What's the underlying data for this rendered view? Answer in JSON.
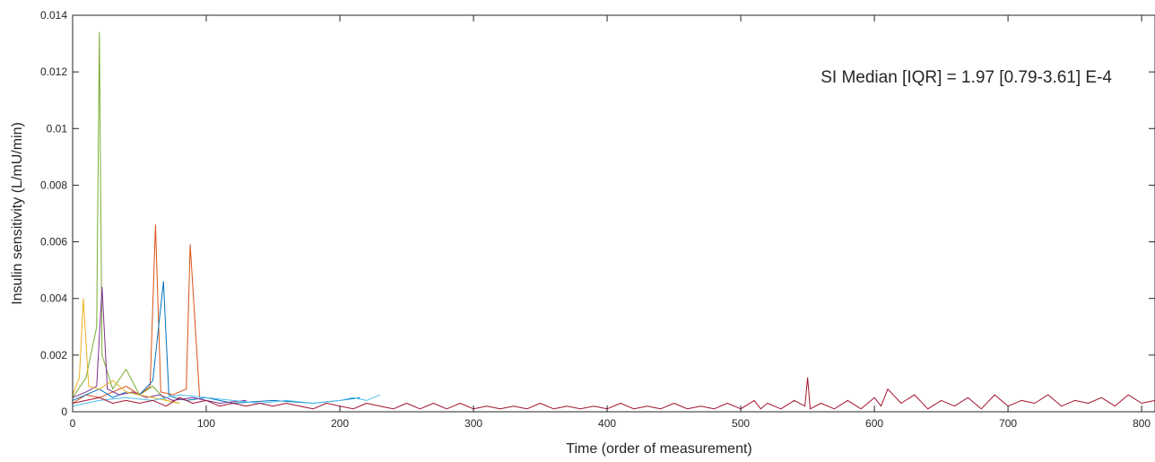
{
  "chart_data": {
    "type": "line",
    "title": "",
    "xlabel": "Time (order of  measurement)",
    "ylabel": "Insulin sensitivity (L/mU/min)",
    "xlim": [
      0,
      810
    ],
    "ylim": [
      0,
      0.014
    ],
    "x_ticks": [
      0,
      100,
      200,
      300,
      400,
      500,
      600,
      700,
      800
    ],
    "x_tick_labels": [
      "0",
      "100",
      "200",
      "300",
      "400",
      "500",
      "600",
      "700",
      "800"
    ],
    "y_ticks": [
      0,
      0.002,
      0.004,
      0.006,
      0.008,
      0.01,
      0.012,
      0.014
    ],
    "y_tick_labels": [
      "0",
      "0.002",
      "0.004",
      "0.006",
      "0.008",
      "0.01",
      "0.012",
      "0.014"
    ],
    "grid": false,
    "legend": "none",
    "annotation": "SI Median [IQR] = 1.97 [0.79-3.61] E-4",
    "series": [
      {
        "color": "#77ac30",
        "x": [
          0,
          10,
          18,
          20,
          22,
          30,
          40,
          50,
          60,
          70,
          80
        ],
        "y": [
          0.0005,
          0.0012,
          0.003,
          0.0134,
          0.002,
          0.0008,
          0.0015,
          0.0006,
          0.0009,
          0.0004,
          0.0003
        ]
      },
      {
        "color": "#d95319",
        "x": [
          0,
          10,
          20,
          30,
          40,
          50,
          58,
          62,
          66,
          75,
          85,
          88,
          95
        ],
        "y": [
          0.0003,
          0.0006,
          0.0005,
          0.0007,
          0.0009,
          0.0006,
          0.0009,
          0.0066,
          0.0007,
          0.0006,
          0.0008,
          0.0059,
          0.0005
        ]
      },
      {
        "color": "#0072bd",
        "x": [
          0,
          10,
          20,
          30,
          40,
          50,
          60,
          68,
          72,
          76,
          85,
          100,
          120,
          150,
          180,
          200,
          215
        ],
        "y": [
          0.0004,
          0.0006,
          0.0008,
          0.0005,
          0.0007,
          0.0006,
          0.0011,
          0.0046,
          0.0006,
          0.0005,
          0.0004,
          0.0005,
          0.0003,
          0.0004,
          0.0003,
          0.0004,
          0.0005
        ]
      },
      {
        "color": "#7e2f8e",
        "x": [
          0,
          10,
          18,
          22,
          26,
          35,
          45,
          55,
          65,
          75,
          90,
          110,
          130
        ],
        "y": [
          0.0005,
          0.0007,
          0.0009,
          0.0044,
          0.0008,
          0.0006,
          0.0007,
          0.0005,
          0.0006,
          0.0004,
          0.0005,
          0.0003,
          0.0004
        ]
      },
      {
        "color": "#edb120",
        "x": [
          0,
          5,
          8,
          12,
          20,
          30,
          40,
          50,
          60,
          70,
          80
        ],
        "y": [
          0.0006,
          0.0012,
          0.004,
          0.0009,
          0.0008,
          0.0011,
          0.0007,
          0.0006,
          0.0005,
          0.0004,
          0.0003
        ]
      },
      {
        "color": "#4dbeee",
        "x": [
          0,
          20,
          40,
          60,
          80,
          100,
          120,
          140,
          160,
          180,
          200,
          210,
          220,
          230
        ],
        "y": [
          0.0002,
          0.0004,
          0.0005,
          0.0004,
          0.0006,
          0.0005,
          0.0004,
          0.0003,
          0.0004,
          0.0003,
          0.0004,
          0.0005,
          0.0004,
          0.0006
        ]
      },
      {
        "color": "#a2142f",
        "x": [
          0,
          10,
          20,
          30,
          40,
          50,
          60,
          70,
          80,
          90,
          100,
          110,
          120,
          130,
          140,
          150,
          160,
          170,
          180,
          190,
          200,
          210,
          220,
          230,
          240,
          250,
          260,
          270,
          280,
          290,
          300,
          310,
          320,
          330,
          340,
          350,
          360,
          370,
          380,
          390,
          400,
          410,
          420,
          430,
          440,
          450,
          460,
          470,
          480,
          490,
          500,
          510,
          515,
          520,
          530,
          540,
          548,
          550,
          552,
          560,
          570,
          580,
          590,
          600,
          605,
          610,
          620,
          630,
          640,
          650,
          660,
          670,
          680,
          690,
          700,
          710,
          720,
          730,
          740,
          750,
          760,
          770,
          780,
          790,
          800,
          810
        ],
        "y": [
          0.0003,
          0.0004,
          0.0005,
          0.0003,
          0.0004,
          0.0003,
          0.0004,
          0.0002,
          0.0005,
          0.0003,
          0.0004,
          0.0002,
          0.0003,
          0.0002,
          0.0003,
          0.0002,
          0.0003,
          0.0002,
          0.0001,
          0.0003,
          0.0002,
          0.0001,
          0.0003,
          0.0002,
          0.0001,
          0.0003,
          0.0001,
          0.0003,
          0.0001,
          0.0003,
          0.0001,
          0.0002,
          0.0001,
          0.0002,
          0.0001,
          0.0003,
          0.0001,
          0.0002,
          0.0001,
          0.0002,
          0.0001,
          0.0003,
          0.0001,
          0.0002,
          0.0001,
          0.0003,
          0.0001,
          0.0002,
          0.0001,
          0.0003,
          0.0001,
          0.0004,
          0.0001,
          0.0003,
          0.0001,
          0.0004,
          0.0002,
          0.0012,
          0.0001,
          0.0003,
          0.0001,
          0.0004,
          0.0001,
          0.0005,
          0.0002,
          0.0008,
          0.0003,
          0.0006,
          0.0001,
          0.0004,
          0.0002,
          0.0005,
          0.0001,
          0.0006,
          0.0002,
          0.0004,
          0.0003,
          0.0006,
          0.0002,
          0.0004,
          0.0003,
          0.0005,
          0.0002,
          0.0006,
          0.0003,
          0.0004
        ]
      }
    ]
  }
}
